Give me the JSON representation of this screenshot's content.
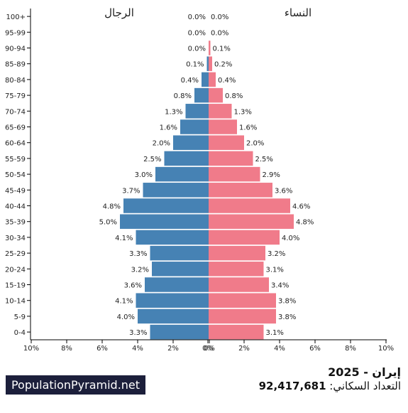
{
  "chart_data": {
    "type": "bar",
    "orientation": "horizontal-population-pyramid",
    "categories": [
      "100+",
      "95-99",
      "90-94",
      "85-89",
      "80-84",
      "75-79",
      "70-74",
      "65-69",
      "60-64",
      "55-59",
      "50-54",
      "45-49",
      "40-44",
      "35-39",
      "30-34",
      "25-29",
      "20-24",
      "15-19",
      "10-14",
      "5-9",
      "0-4"
    ],
    "series": [
      {
        "name": "الرجال",
        "color": "#4682b4",
        "values": [
          0.0,
          0.0,
          0.0,
          0.1,
          0.4,
          0.8,
          1.3,
          1.6,
          2.0,
          2.5,
          3.0,
          3.7,
          4.8,
          5.0,
          4.1,
          3.3,
          3.2,
          3.6,
          4.1,
          4.0,
          3.3
        ]
      },
      {
        "name": "النساء",
        "color": "#f07b8a",
        "values": [
          0.0,
          0.0,
          0.1,
          0.2,
          0.4,
          0.8,
          1.3,
          1.6,
          2.0,
          2.5,
          2.9,
          3.6,
          4.6,
          4.8,
          4.0,
          3.2,
          3.1,
          3.4,
          3.8,
          3.8,
          3.1
        ]
      }
    ],
    "xlim": [
      -10,
      10
    ],
    "x_ticks": [
      "10%",
      "8%",
      "6%",
      "4%",
      "2%",
      "0%",
      "0%",
      "2%",
      "4%",
      "6%",
      "8%",
      "10%"
    ],
    "grid": false
  },
  "header": {
    "title": "إيران - 2025"
  },
  "population": {
    "label": "التعداد السكاني:",
    "value": "92,417,681"
  },
  "brand": {
    "name": "PopulationPyramid.net"
  }
}
